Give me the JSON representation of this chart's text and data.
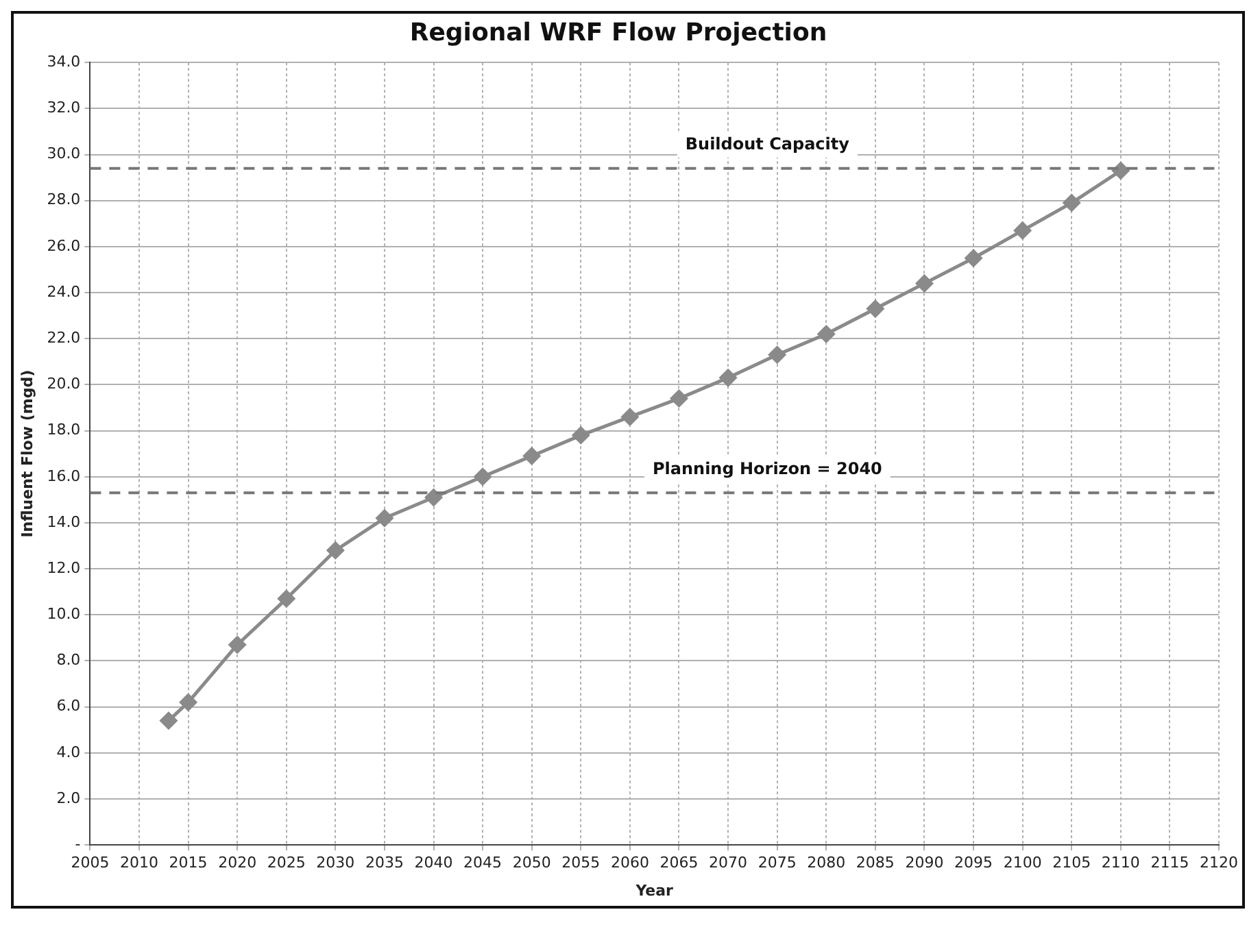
{
  "chart_data": {
    "type": "line",
    "title": "Regional WRF Flow Projection",
    "xlabel": "Year",
    "ylabel": "Influent Flow (mgd)",
    "x": [
      2013,
      2015,
      2020,
      2025,
      2030,
      2035,
      2040,
      2045,
      2050,
      2055,
      2060,
      2065,
      2070,
      2075,
      2080,
      2085,
      2090,
      2095,
      2100,
      2105,
      2110
    ],
    "series": [
      {
        "color": "#8a8a8a",
        "values": [
          5.4,
          6.2,
          8.7,
          10.7,
          12.8,
          14.2,
          15.1,
          16.0,
          16.9,
          17.8,
          18.6,
          19.4,
          20.3,
          21.3,
          22.2,
          23.3,
          24.4,
          25.5,
          26.7,
          27.9,
          29.3
        ]
      }
    ],
    "xlim": [
      2005,
      2120
    ],
    "xticks": [
      2005,
      2010,
      2015,
      2020,
      2025,
      2030,
      2035,
      2040,
      2045,
      2050,
      2055,
      2060,
      2065,
      2070,
      2075,
      2080,
      2085,
      2090,
      2095,
      2100,
      2105,
      2110,
      2115,
      2120
    ],
    "ylim": [
      0,
      34
    ],
    "yticks": [
      {
        "value": 0,
        "label": "-"
      },
      {
        "value": 2,
        "label": "2.0"
      },
      {
        "value": 4,
        "label": "4.0"
      },
      {
        "value": 6,
        "label": "6.0"
      },
      {
        "value": 8,
        "label": "8.0"
      },
      {
        "value": 10,
        "label": "10.0"
      },
      {
        "value": 12,
        "label": "12.0"
      },
      {
        "value": 14,
        "label": "14.0"
      },
      {
        "value": 16,
        "label": "16.0"
      },
      {
        "value": 18,
        "label": "18.0"
      },
      {
        "value": 20,
        "label": "20.0"
      },
      {
        "value": 22,
        "label": "22.0"
      },
      {
        "value": 24,
        "label": "24.0"
      },
      {
        "value": 26,
        "label": "26.0"
      },
      {
        "value": 28,
        "label": "28.0"
      },
      {
        "value": 30,
        "label": "30.0"
      },
      {
        "value": 32,
        "label": "32.0"
      },
      {
        "value": 34,
        "label": "34.0"
      }
    ],
    "ref_lines": [
      {
        "axis": "y",
        "value": 29.4,
        "label": "Buildout Capacity",
        "color": "#777777",
        "line_style": "dashed"
      },
      {
        "axis": "y",
        "value": 15.3,
        "color": "#777777",
        "line_style": "dashed"
      }
    ],
    "annotations": [
      {
        "text": "Planning Horizon = 2040",
        "y": 15.3
      }
    ],
    "grid": true,
    "legend": false,
    "marker": "diamond",
    "line_style": "solid"
  }
}
